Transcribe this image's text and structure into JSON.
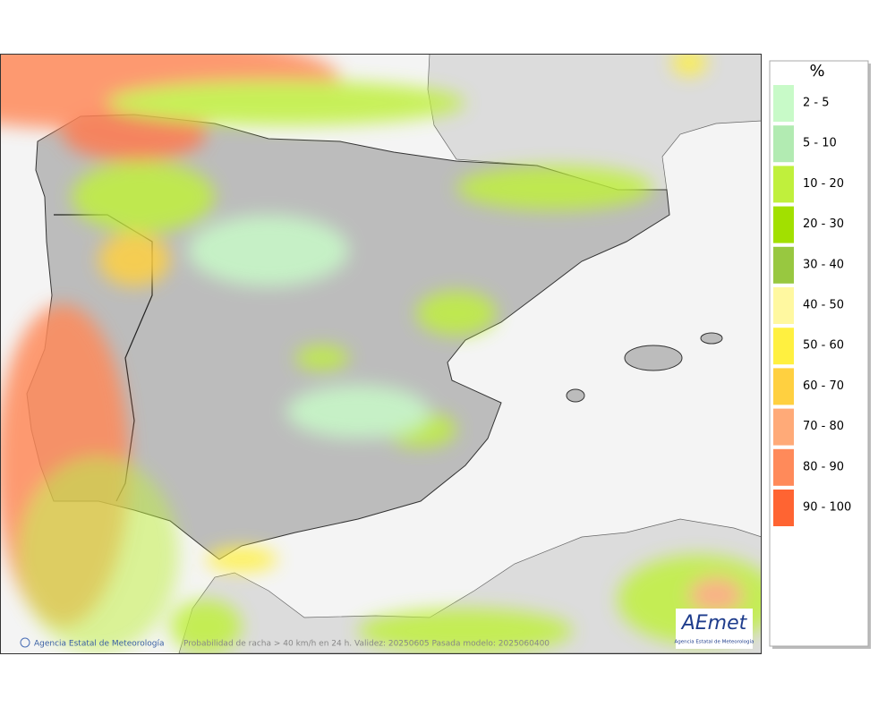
{
  "legend": {
    "title": "%",
    "items": [
      {
        "label": "2 - 5",
        "color": "#c8fac8"
      },
      {
        "label": "5 - 10",
        "color": "#b2ebb2"
      },
      {
        "label": "10 - 20",
        "color": "#c0f03c"
      },
      {
        "label": "20 - 30",
        "color": "#a2e000"
      },
      {
        "label": "30 - 40",
        "color": "#98c840"
      },
      {
        "label": "40 - 50",
        "color": "#fff8a0"
      },
      {
        "label": "50 - 60",
        "color": "#fff040"
      },
      {
        "label": "60 - 70",
        "color": "#ffd040"
      },
      {
        "label": "70 - 80",
        "color": "#ffaa78"
      },
      {
        "label": "80 - 90",
        "color": "#ff8a5a"
      },
      {
        "label": "90 - 100",
        "color": "#ff6432"
      }
    ]
  },
  "footer": {
    "credit": "Agencia Estatal de Meteorología",
    "caption": "Probabilidad de racha > 40 km/h en 24 h. Validez: 20250605 Pasada modelo: 2025060400"
  },
  "logo": {
    "text": "AEmet",
    "subtitle": "Agencia Estatal de Meteorología"
  }
}
